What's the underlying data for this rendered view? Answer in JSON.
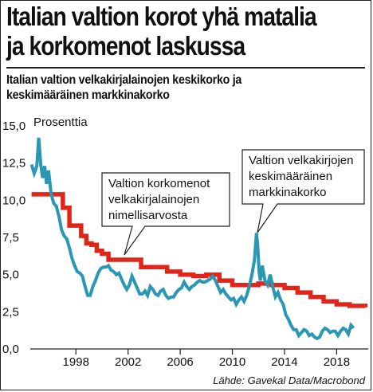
{
  "header": {
    "title_line1": "Italian valtion korot yhä matalia",
    "title_line2": "ja korkomenot laskussa",
    "subtitle_line1": "Italian valtion velkakirjalainojen keskikorko ja",
    "subtitle_line2": "keskimääräinen markkinakorko"
  },
  "source": "Lähde: Gavekal Data/Macrobond",
  "colors": {
    "red_series": "#e0261b",
    "blue_series": "#2a97b5"
  },
  "chart_data": {
    "type": "line",
    "title": "",
    "ylabel": "Prosenttia",
    "xlabel": "",
    "ylim": [
      0,
      15
    ],
    "xlim": [
      1994.5,
      2020.3
    ],
    "yticks": [
      0,
      2.5,
      5,
      7.5,
      10,
      12.5,
      15
    ],
    "ytick_labels": [
      "0,0",
      "2,5",
      "5,0",
      "7,5",
      "10,0",
      "12,5",
      "15,0"
    ],
    "xticks": [
      1998,
      2002,
      2006,
      2010,
      2014,
      2018
    ],
    "xtick_labels": [
      "1998",
      "2002",
      "2006",
      "2010",
      "2014",
      "2018"
    ],
    "grid": false,
    "annotations": [
      {
        "lines": [
          "Valtion korkomenot",
          "velkakirjalainojen",
          "nimellisarvosta"
        ],
        "series": "Valtion korkomenot velkakirjalainojen nimellisarvosta"
      },
      {
        "lines": [
          "Valtion velkakirjojen",
          "keskimääräinen",
          "markkinakorko"
        ],
        "series": "Valtion velkakirjojen keskimääräinen markkinakorko"
      }
    ],
    "series": [
      {
        "name": "Valtion korkomenot velkakirjalainojen nimellisarvosta",
        "step": true,
        "x": [
          1994.6,
          1996.6,
          1997.0,
          1997.5,
          1998.0,
          1998.4,
          1998.8,
          1999.2,
          1999.6,
          2000.0,
          2000.5,
          2001.0,
          2002.0,
          2002.3,
          2003.0,
          2004.0,
          2005.0,
          2006.0,
          2007.0,
          2007.5,
          2008.0,
          2008.5,
          2009.0,
          2009.5,
          2010.0,
          2011.0,
          2012.0,
          2013.0,
          2014.0,
          2015.0,
          2016.0,
          2017.0,
          2018.0,
          2019.0,
          2020.2
        ],
        "values": [
          10.4,
          10.4,
          9.5,
          8.3,
          8.3,
          7.6,
          7.1,
          7.0,
          6.6,
          6.4,
          6.0,
          6.0,
          6.0,
          6.0,
          5.5,
          5.5,
          5.2,
          5.0,
          4.9,
          4.9,
          5.0,
          5.0,
          4.6,
          4.6,
          4.3,
          4.3,
          4.4,
          4.3,
          4.1,
          3.8,
          3.5,
          3.2,
          3.0,
          2.9,
          2.8
        ]
      },
      {
        "name": "Valtion velkakirjojen keskimääräinen markkinakorko",
        "step": false,
        "x": [
          1994.6,
          1994.8,
          1995.0,
          1995.15,
          1995.3,
          1995.45,
          1995.6,
          1995.75,
          1995.9,
          1996.1,
          1996.3,
          1996.5,
          1996.7,
          1996.9,
          1997.1,
          1997.3,
          1997.5,
          1997.7,
          1997.9,
          1998.1,
          1998.3,
          1998.5,
          1998.7,
          1998.9,
          1999.1,
          1999.3,
          1999.5,
          1999.7,
          1999.9,
          2000.1,
          2000.3,
          2000.5,
          2000.7,
          2000.9,
          2001.1,
          2001.3,
          2001.5,
          2001.7,
          2001.9,
          2002.1,
          2002.3,
          2002.5,
          2002.7,
          2002.9,
          2003.1,
          2003.3,
          2003.5,
          2003.7,
          2003.9,
          2004.1,
          2004.3,
          2004.5,
          2004.7,
          2004.9,
          2005.1,
          2005.3,
          2005.5,
          2005.7,
          2005.9,
          2006.1,
          2006.3,
          2006.5,
          2006.7,
          2006.9,
          2007.1,
          2007.3,
          2007.5,
          2007.7,
          2007.9,
          2008.1,
          2008.3,
          2008.5,
          2008.7,
          2008.9,
          2009.1,
          2009.3,
          2009.5,
          2009.7,
          2009.9,
          2010.1,
          2010.3,
          2010.5,
          2010.7,
          2010.9,
          2011.1,
          2011.3,
          2011.5,
          2011.7,
          2011.85,
          2011.95,
          2012.05,
          2012.15,
          2012.3,
          2012.5,
          2012.7,
          2012.9,
          2013.1,
          2013.3,
          2013.5,
          2013.7,
          2013.9,
          2014.1,
          2014.3,
          2014.5,
          2014.7,
          2014.9,
          2015.1,
          2015.3,
          2015.5,
          2015.7,
          2015.9,
          2016.1,
          2016.3,
          2016.5,
          2016.7,
          2016.9,
          2017.1,
          2017.3,
          2017.5,
          2017.7,
          2017.9,
          2018.1,
          2018.3,
          2018.5,
          2018.7,
          2018.9,
          2019.1,
          2019.3
        ],
        "values": [
          12.4,
          11.8,
          12.3,
          14.2,
          12.4,
          11.5,
          12.3,
          11.1,
          12.0,
          10.4,
          9.8,
          9.6,
          8.9,
          8.0,
          7.6,
          7.4,
          6.8,
          6.1,
          5.6,
          5.2,
          5.1,
          4.9,
          4.2,
          3.6,
          3.6,
          4.2,
          4.6,
          5.1,
          5.4,
          5.5,
          5.5,
          5.6,
          5.3,
          5.2,
          5.0,
          5.1,
          4.7,
          4.3,
          4.0,
          4.3,
          4.9,
          4.5,
          4.1,
          3.7,
          3.7,
          3.9,
          3.6,
          4.2,
          4.0,
          3.7,
          3.6,
          3.9,
          4.0,
          3.6,
          3.4,
          3.5,
          3.5,
          3.8,
          4.0,
          4.1,
          4.5,
          4.2,
          4.0,
          4.2,
          4.3,
          4.5,
          4.6,
          4.5,
          4.5,
          4.6,
          4.7,
          4.9,
          4.6,
          4.2,
          3.8,
          4.0,
          3.7,
          3.5,
          3.3,
          3.4,
          3.0,
          3.3,
          3.5,
          3.2,
          3.6,
          4.2,
          5.0,
          6.0,
          7.8,
          6.9,
          5.2,
          4.6,
          5.6,
          4.6,
          4.3,
          5.0,
          4.2,
          3.5,
          3.8,
          3.3,
          3.0,
          2.3,
          2.0,
          1.6,
          1.3,
          1.3,
          0.9,
          1.1,
          1.3,
          1.2,
          0.9,
          1.0,
          0.8,
          0.7,
          0.8,
          1.2,
          1.4,
          1.3,
          1.1,
          1.2,
          1.2,
          0.9,
          1.2,
          1.4,
          1.3,
          1.0,
          1.6,
          1.4
        ]
      }
    ]
  }
}
